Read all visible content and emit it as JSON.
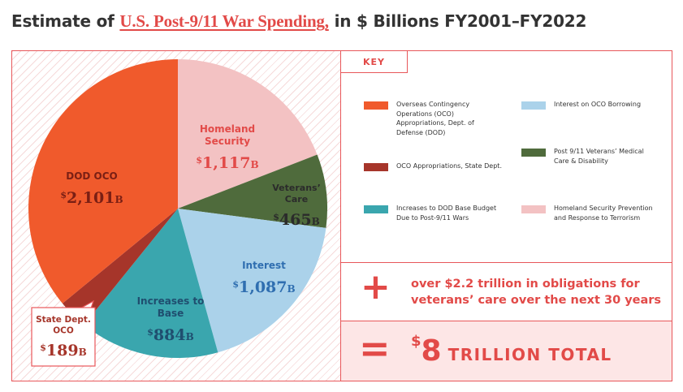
{
  "title": {
    "prefix": "Estimate of",
    "highlight": "U.S. Post-9/11 War Spending,",
    "suffix": "in $ Billions FY2001–FY2022"
  },
  "key": {
    "title": "KEY",
    "items": [
      {
        "label": "Overseas Contingency Operations (OCO) Appropriations, Dept. of Defense (DOD)",
        "color": "#f05a2c"
      },
      {
        "label": "OCO Appropriations, State Dept.",
        "color": "#a6352a"
      },
      {
        "label": "Increases to DOD Base Budget Due to Post-9/11 Wars",
        "color": "#3aa6ae"
      },
      {
        "label": "Interest on OCO Borrowing",
        "color": "#abd2ea"
      },
      {
        "label": "Post 9/11 Veterans’ Medical Care & Disability",
        "color": "#4f6b3c"
      },
      {
        "label": "Homeland Security Prevention and Response to Terrorism",
        "color": "#f3c2c3"
      }
    ]
  },
  "plus": {
    "sign": "+",
    "text": "over $2.2 trillion in obligations for veterans’ care over the next 30 years"
  },
  "total": {
    "sign": "=",
    "dollar": "$",
    "amount": "8",
    "words": "TRILLION TOTAL"
  },
  "chart_data": {
    "type": "pie",
    "unit": "B",
    "currency": "$",
    "slices": [
      {
        "name": "Homeland Security",
        "value": 1117,
        "color": "#f3c2c3",
        "label_color": "#e24a48"
      },
      {
        "name": "Veterans’ Care",
        "value": 465,
        "color": "#4f6b3c",
        "label_color": "#2b2b2b"
      },
      {
        "name": "Interest",
        "value": 1087,
        "color": "#abd2ea",
        "label_color": "#2f6eb0"
      },
      {
        "name": "Increases to Base",
        "value": 884,
        "color": "#3aa6ae",
        "label_color": "#1f4e6f"
      },
      {
        "name": "State Dept. OCO",
        "value": 189,
        "color": "#a6352a",
        "label_color": "#a6352a"
      },
      {
        "name": "DOD OCO",
        "value": 2101,
        "color": "#f05a2c",
        "label_color": "#7a1f14"
      }
    ]
  }
}
